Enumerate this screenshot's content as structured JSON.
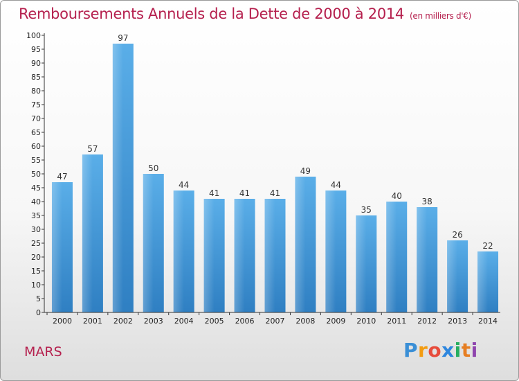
{
  "title": "Remboursements Annuels de la Dette de 2000 à 2014",
  "unit_note": "(en milliers d'€)",
  "commune": "MARS",
  "logo": {
    "text": "Proxiti",
    "letters": [
      {
        "ch": "P",
        "color": "#3a8fd6"
      },
      {
        "ch": "r",
        "color": "#f39c12"
      },
      {
        "ch": "o",
        "color": "#e74c3c"
      },
      {
        "ch": "x",
        "color": "#2e86de"
      },
      {
        "ch": "i",
        "color": "#27ae60"
      },
      {
        "ch": "t",
        "color": "#e67e22"
      },
      {
        "ch": "i",
        "color": "#8e44ad"
      }
    ]
  },
  "chart_data": {
    "type": "bar",
    "categories": [
      "2000",
      "2001",
      "2002",
      "2003",
      "2004",
      "2005",
      "2006",
      "2007",
      "2008",
      "2009",
      "2010",
      "2011",
      "2012",
      "2013",
      "2014"
    ],
    "values": [
      47,
      57,
      97,
      50,
      44,
      41,
      41,
      41,
      49,
      44,
      35,
      40,
      38,
      26,
      22
    ],
    "ylim": [
      0,
      100
    ],
    "ytick_step": 5,
    "grid": false,
    "bar_color": "#5aaee8",
    "bar_color_dark": "#2f7fc2",
    "axis_color": "#333333"
  }
}
